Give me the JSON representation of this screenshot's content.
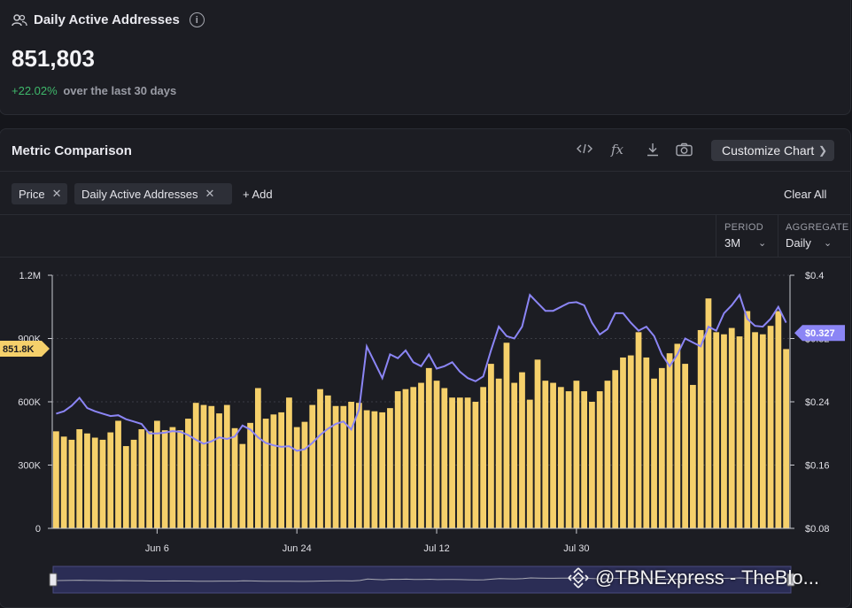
{
  "header": {
    "title": "Daily Active Addresses",
    "value": "851,803",
    "change_pct": "+22.02%",
    "change_desc": "over the last 30 days"
  },
  "metric_comparison": {
    "title": "Metric Comparison",
    "tools": [
      "code-icon",
      "fx-icon",
      "download-icon",
      "camera-icon"
    ],
    "customize_label": "Customize Chart",
    "chips": [
      "Price",
      "Daily Active Addresses"
    ],
    "add_label": "+ Add",
    "clear_label": "Clear All",
    "period_label": "PERIOD",
    "period_value": "3M",
    "aggregate_label": "AGGREGATE",
    "aggregate_value": "Daily"
  },
  "colors": {
    "bars": "#f5d06b",
    "price_line": "#8b85f5",
    "positive": "#3fb86b"
  },
  "watermark": "@TBNExpress - TheBlo...",
  "chart_data": {
    "type": "bar",
    "title": "",
    "x_tick_labels": [
      "Jun 6",
      "Jun 24",
      "Jul 12",
      "Jul 30"
    ],
    "x_tick_index": [
      13,
      31,
      49,
      67
    ],
    "y_left": {
      "ticks": [
        "0",
        "300K",
        "600K",
        "900K",
        "1.2M"
      ],
      "range": [
        0,
        1200000
      ]
    },
    "y_right": {
      "ticks": [
        "$0.08",
        "$0.16",
        "$0.24",
        "$0.32",
        "$0.4"
      ],
      "range": [
        0.08,
        0.4
      ]
    },
    "left_marker": "851.8K",
    "left_marker_value": 851800,
    "right_marker": "$0.327",
    "right_marker_value": 0.327,
    "series": [
      {
        "name": "Daily Active Addresses",
        "type": "bar",
        "values": [
          460000,
          435000,
          420000,
          470000,
          450000,
          430000,
          420000,
          455000,
          510000,
          390000,
          420000,
          470000,
          460000,
          510000,
          465000,
          480000,
          465000,
          520000,
          595000,
          585000,
          580000,
          545000,
          585000,
          475000,
          400000,
          500000,
          665000,
          520000,
          540000,
          550000,
          620000,
          480000,
          505000,
          585000,
          660000,
          630000,
          580000,
          580000,
          600000,
          595000,
          560000,
          555000,
          550000,
          570000,
          650000,
          660000,
          670000,
          690000,
          760000,
          700000,
          665000,
          620000,
          620000,
          620000,
          600000,
          670000,
          780000,
          710000,
          880000,
          690000,
          740000,
          610000,
          800000,
          700000,
          690000,
          670000,
          650000,
          700000,
          650000,
          600000,
          650000,
          700000,
          750000,
          810000,
          820000,
          930000,
          810000,
          710000,
          760000,
          830000,
          875000,
          780000,
          680000,
          940000,
          1090000,
          930000,
          920000,
          950000,
          910000,
          1030000,
          930000,
          920000,
          960000,
          1030000,
          850000
        ]
      },
      {
        "name": "Price",
        "type": "line",
        "values": [
          0.225,
          0.228,
          0.235,
          0.245,
          0.232,
          0.228,
          0.225,
          0.222,
          0.223,
          0.218,
          0.215,
          0.212,
          0.2,
          0.2,
          0.201,
          0.203,
          0.202,
          0.198,
          0.192,
          0.187,
          0.19,
          0.195,
          0.193,
          0.196,
          0.21,
          0.205,
          0.195,
          0.188,
          0.185,
          0.183,
          0.184,
          0.178,
          0.18,
          0.188,
          0.198,
          0.206,
          0.212,
          0.215,
          0.205,
          0.23,
          0.31,
          0.29,
          0.27,
          0.3,
          0.295,
          0.305,
          0.29,
          0.285,
          0.3,
          0.282,
          0.285,
          0.29,
          0.278,
          0.27,
          0.266,
          0.272,
          0.305,
          0.335,
          0.323,
          0.32,
          0.335,
          0.375,
          0.365,
          0.355,
          0.355,
          0.36,
          0.365,
          0.366,
          0.362,
          0.34,
          0.325,
          0.332,
          0.352,
          0.352,
          0.34,
          0.33,
          0.335,
          0.323,
          0.3,
          0.285,
          0.3,
          0.32,
          0.315,
          0.31,
          0.335,
          0.33,
          0.352,
          0.362,
          0.375,
          0.345,
          0.336,
          0.335,
          0.345,
          0.36,
          0.34
        ]
      }
    ]
  }
}
